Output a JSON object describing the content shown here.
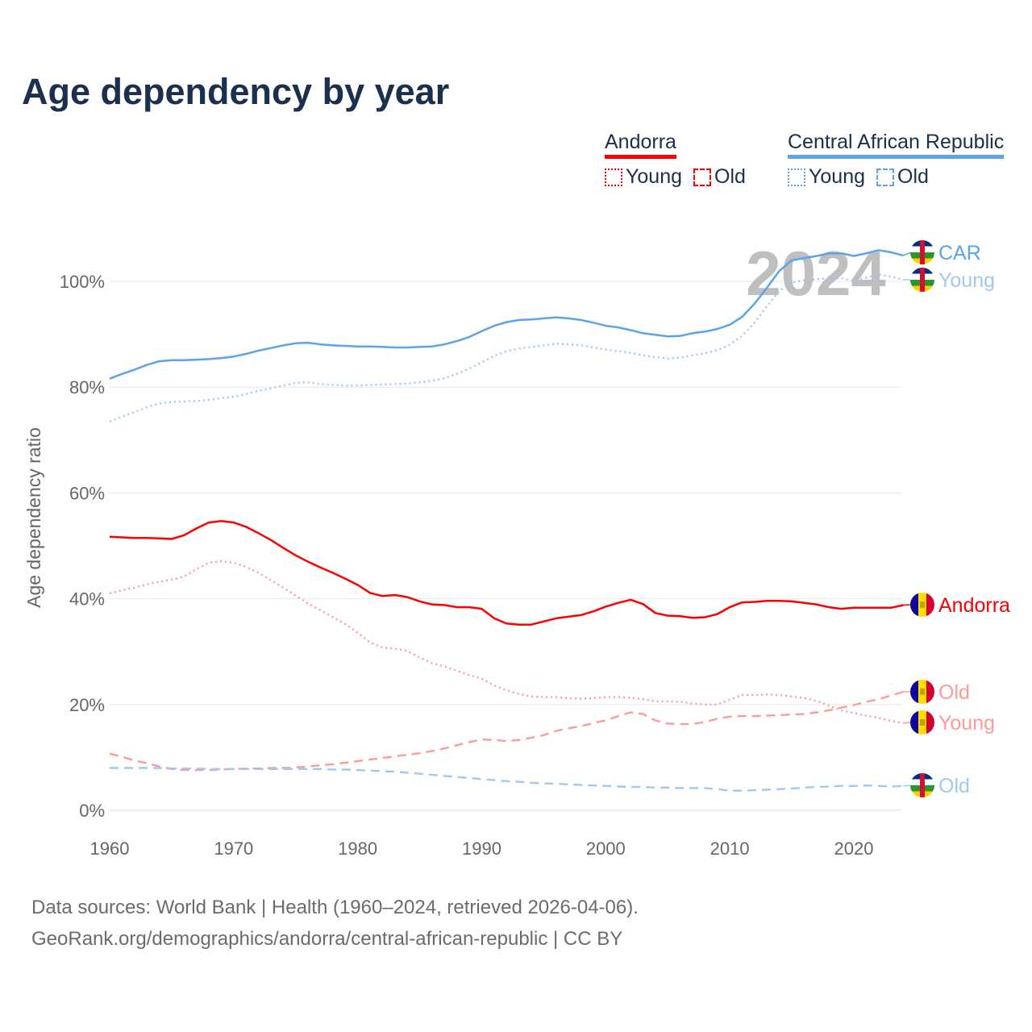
{
  "title": "Age dependency by year",
  "legend": {
    "groups": [
      {
        "name": "Andorra",
        "color": "#ff0000",
        "young_label": "Young",
        "old_label": "Old"
      },
      {
        "name": "Central African Republic",
        "color": "#5ba3ea",
        "young_label": "Young",
        "old_label": "Old"
      }
    ]
  },
  "footer": {
    "line1": "Data sources: World Bank | Health (1960–2024, retrieved 2026-04-06).",
    "line2": "GeoRank.org/demographics/andorra/central-african-republic | CC BY"
  },
  "chart_data": {
    "type": "line",
    "title": "Age dependency by year",
    "xlabel": "",
    "ylabel": "Age dependency ratio",
    "xlim": [
      1960,
      2024
    ],
    "ylim": [
      0,
      110
    ],
    "yticks": [
      0,
      20,
      40,
      60,
      80,
      100
    ],
    "ytick_labels": [
      "0%",
      "20%",
      "40%",
      "60%",
      "80%",
      "100%"
    ],
    "xticks": [
      1960,
      1970,
      1980,
      1990,
      2000,
      2010,
      2020
    ],
    "xtick_labels": [
      "1960",
      "1970",
      "1980",
      "1990",
      "2000",
      "2010",
      "2020"
    ],
    "grid": true,
    "year_watermark": "2024",
    "x_start": 1960,
    "series": [
      {
        "name": "Andorra",
        "end_label": "Andorra",
        "color": "#ff0000",
        "style": "solid",
        "flag": "andorra",
        "values": [
          51.7,
          51.6,
          51.5,
          51.5,
          51.4,
          51.3,
          52.0,
          53.3,
          54.4,
          54.7,
          54.4,
          53.6,
          52.4,
          51.1,
          49.6,
          48.2,
          47.0,
          45.9,
          44.9,
          43.8,
          42.6,
          41.1,
          40.5,
          40.7,
          40.3,
          39.5,
          38.9,
          38.8,
          38.4,
          38.4,
          38.1,
          36.3,
          35.3,
          35.1,
          35.1,
          35.7,
          36.3,
          36.6,
          36.9,
          37.6,
          38.5,
          39.2,
          39.8,
          39.0,
          37.3,
          36.8,
          36.7,
          36.4,
          36.5,
          37.1,
          38.4,
          39.3,
          39.4,
          39.6,
          39.6,
          39.5,
          39.2,
          38.9,
          38.4,
          38.1,
          38.3,
          38.3,
          38.3,
          38.3,
          38.8
        ]
      },
      {
        "name": "Andorra Young",
        "end_label": "Young",
        "color": "#ff9a9a",
        "style": "dotted",
        "flag": "andorra",
        "values": [
          41.0,
          41.6,
          42.1,
          42.7,
          43.2,
          43.6,
          44.2,
          45.6,
          46.8,
          47.1,
          46.8,
          46.0,
          44.9,
          43.5,
          42.1,
          40.6,
          39.1,
          37.8,
          36.5,
          35.2,
          33.6,
          31.7,
          30.8,
          30.6,
          30.1,
          28.9,
          27.8,
          27.2,
          26.4,
          25.6,
          24.9,
          23.6,
          22.7,
          22.0,
          21.5,
          21.4,
          21.4,
          21.2,
          21.1,
          21.2,
          21.4,
          21.4,
          21.3,
          21.0,
          20.6,
          20.6,
          20.5,
          20.2,
          20.0,
          20.0,
          20.9,
          21.8,
          21.8,
          21.9,
          21.8,
          21.5,
          21.2,
          20.7,
          19.8,
          18.9,
          18.4,
          17.9,
          17.5,
          16.9,
          16.5
        ]
      },
      {
        "name": "Andorra Old",
        "end_label": "Old",
        "color": "#ff9a9a",
        "style": "dashed",
        "flag": "andorra",
        "values": [
          10.7,
          10.1,
          9.4,
          8.9,
          8.3,
          7.8,
          7.6,
          7.6,
          7.6,
          7.7,
          7.8,
          7.9,
          7.9,
          8.0,
          8.0,
          8.1,
          8.3,
          8.5,
          8.7,
          9.0,
          9.3,
          9.6,
          9.9,
          10.2,
          10.5,
          10.8,
          11.2,
          11.7,
          12.3,
          12.9,
          13.4,
          13.3,
          13.1,
          13.3,
          13.7,
          14.2,
          15.0,
          15.5,
          15.9,
          16.5,
          17.0,
          17.8,
          18.5,
          18.2,
          17.0,
          16.4,
          16.3,
          16.3,
          16.7,
          17.3,
          17.7,
          17.8,
          17.8,
          17.9,
          18.0,
          18.1,
          18.2,
          18.5,
          18.9,
          19.4,
          19.9,
          20.5,
          21.0,
          21.7,
          22.4
        ]
      },
      {
        "name": "Central African Republic",
        "end_label": "CAR",
        "color": "#5ba3ea",
        "style": "solid",
        "flag": "car",
        "values": [
          81.6,
          82.5,
          83.3,
          84.2,
          84.9,
          85.1,
          85.1,
          85.2,
          85.3,
          85.5,
          85.8,
          86.3,
          86.9,
          87.4,
          87.9,
          88.3,
          88.4,
          88.1,
          87.9,
          87.8,
          87.7,
          87.7,
          87.6,
          87.5,
          87.5,
          87.6,
          87.7,
          88.1,
          88.7,
          89.5,
          90.6,
          91.6,
          92.3,
          92.7,
          92.8,
          93.0,
          93.2,
          93.0,
          92.7,
          92.2,
          91.6,
          91.3,
          90.8,
          90.2,
          89.9,
          89.6,
          89.7,
          90.2,
          90.5,
          91.0,
          91.8,
          93.3,
          95.8,
          98.8,
          102.0,
          104.0,
          104.4,
          104.8,
          105.3,
          105.3,
          104.8,
          105.3,
          105.9,
          105.5,
          104.9
        ]
      },
      {
        "name": "Central African Republic Young",
        "end_label": "Young",
        "color": "#9fc8f2",
        "style": "dotted",
        "flag": "car",
        "values": [
          73.5,
          74.4,
          75.3,
          76.2,
          76.9,
          77.2,
          77.3,
          77.4,
          77.6,
          77.9,
          78.2,
          78.7,
          79.3,
          79.8,
          80.3,
          80.8,
          80.9,
          80.6,
          80.4,
          80.3,
          80.3,
          80.4,
          80.5,
          80.6,
          80.7,
          80.9,
          81.2,
          81.7,
          82.5,
          83.5,
          84.7,
          85.9,
          86.8,
          87.3,
          87.6,
          87.9,
          88.2,
          88.1,
          87.9,
          87.5,
          87.1,
          86.8,
          86.5,
          86.0,
          85.7,
          85.4,
          85.6,
          86.0,
          86.4,
          87.0,
          88.0,
          89.7,
          92.2,
          95.3,
          98.2,
          99.8,
          100.2,
          100.4,
          100.6,
          100.6,
          100.1,
          100.7,
          101.3,
          100.9,
          100.3
        ]
      },
      {
        "name": "Central African Republic Old",
        "end_label": "Old",
        "color": "#9fc8f2",
        "style": "dashed",
        "flag": "car",
        "values": [
          8.0,
          8.0,
          8.0,
          8.0,
          8.0,
          7.9,
          7.9,
          7.9,
          7.8,
          7.8,
          7.8,
          7.8,
          7.8,
          7.8,
          7.8,
          7.8,
          7.8,
          7.8,
          7.7,
          7.7,
          7.6,
          7.5,
          7.4,
          7.3,
          7.1,
          6.9,
          6.7,
          6.5,
          6.3,
          6.1,
          5.9,
          5.7,
          5.5,
          5.4,
          5.2,
          5.1,
          5.0,
          4.9,
          4.8,
          4.7,
          4.6,
          4.5,
          4.4,
          4.4,
          4.3,
          4.3,
          4.2,
          4.2,
          4.2,
          4.0,
          3.7,
          3.7,
          3.8,
          3.9,
          4.0,
          4.1,
          4.3,
          4.4,
          4.5,
          4.6,
          4.6,
          4.7,
          4.6,
          4.5,
          4.6
        ]
      }
    ]
  }
}
